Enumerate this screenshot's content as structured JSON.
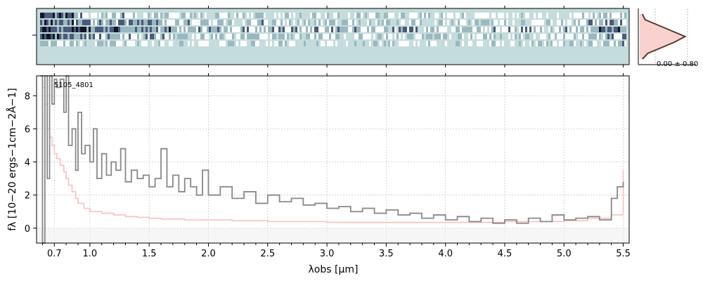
{
  "chart_data": [
    {
      "type": "heatmap",
      "panel": "2d-spectrum",
      "description_colormap": [
        "#c4dcdb",
        "#ffffff",
        "#9ab8c0",
        "#4a5a7a",
        "#141428"
      ],
      "trace_rows": [
        {
          "x": 0.55,
          "values": [
            0.9,
            0.7,
            0.8,
            0.9,
            0.5
          ]
        },
        {
          "x": 1.0,
          "values": [
            0.4,
            0.6,
            0.7,
            0.5,
            0.3
          ]
        },
        {
          "x": 2.0,
          "values": [
            0.3,
            0.4,
            0.5,
            0.35,
            0.25
          ]
        },
        {
          "x": 3.0,
          "values": [
            0.25,
            0.35,
            0.45,
            0.3,
            0.2
          ]
        },
        {
          "x": 4.0,
          "values": [
            0.2,
            0.3,
            0.4,
            0.3,
            0.2
          ]
        },
        {
          "x": 5.0,
          "values": [
            0.2,
            0.3,
            0.4,
            0.3,
            0.25
          ]
        },
        {
          "x": 5.5,
          "values": [
            0.5,
            0.6,
            0.8,
            0.5,
            0.4
          ]
        }
      ]
    },
    {
      "type": "line",
      "panel": "profile",
      "annotation": "0.00 ± 0.80",
      "profile_values": [
        0.05,
        0.1,
        0.35,
        0.6,
        0.85,
        0.65,
        0.4,
        0.15,
        0.05
      ],
      "xlim": [
        0,
        1
      ]
    },
    {
      "type": "line",
      "panel": "1d-spectrum",
      "label": "5105_4801",
      "xlabel": "λobs [μm]",
      "ylabel": "fλ [10−20 ergs−1cm−2Å−1]",
      "x_ticks": [
        0.7,
        1.0,
        1.5,
        2.0,
        2.5,
        3.0,
        3.5,
        4.0,
        4.5,
        5.0,
        5.5
      ],
      "x_tick_labels": [
        "0.7",
        "1.0",
        "1.5",
        "2.0",
        "2.5",
        "3.0",
        "3.5",
        "4.0",
        "4.5",
        "5.0",
        "5.5"
      ],
      "y_ticks": [
        0,
        2,
        4,
        6,
        8
      ],
      "ylim": [
        -0.9,
        9.2
      ],
      "xlim": [
        0.55,
        5.55
      ],
      "grid": true,
      "series": [
        {
          "color": "#888888",
          "x": [
            0.58,
            0.6,
            0.62,
            0.64,
            0.66,
            0.68,
            0.7,
            0.72,
            0.75,
            0.78,
            0.8,
            0.82,
            0.85,
            0.88,
            0.9,
            0.93,
            0.96,
            1.0,
            1.03,
            1.06,
            1.1,
            1.14,
            1.18,
            1.22,
            1.26,
            1.3,
            1.35,
            1.4,
            1.45,
            1.5,
            1.55,
            1.6,
            1.65,
            1.7,
            1.75,
            1.8,
            1.85,
            1.9,
            1.95,
            2.0,
            2.1,
            2.2,
            2.3,
            2.4,
            2.5,
            2.6,
            2.7,
            2.8,
            2.9,
            3.0,
            3.1,
            3.2,
            3.3,
            3.4,
            3.5,
            3.6,
            3.7,
            3.8,
            3.9,
            4.0,
            4.1,
            4.2,
            4.3,
            4.4,
            4.5,
            4.6,
            4.7,
            4.8,
            4.9,
            5.0,
            5.1,
            5.2,
            5.3,
            5.4,
            5.45,
            5.5
          ],
          "y": [
            9.2,
            -0.9,
            9.2,
            3.0,
            9.2,
            7.5,
            9.0,
            8.5,
            9.0,
            7.0,
            9.2,
            5.0,
            6.0,
            3.5,
            7.0,
            4.5,
            5.0,
            4.0,
            6.0,
            3.0,
            4.5,
            3.2,
            4.0,
            3.5,
            4.8,
            2.8,
            3.5,
            3.0,
            3.2,
            2.5,
            3.0,
            4.8,
            2.5,
            3.2,
            2.2,
            3.0,
            2.5,
            2.0,
            3.5,
            2.0,
            2.5,
            1.8,
            2.2,
            1.5,
            2.0,
            1.6,
            1.8,
            1.4,
            1.5,
            1.2,
            1.3,
            1.0,
            1.2,
            0.9,
            1.1,
            0.8,
            0.9,
            0.6,
            0.8,
            0.5,
            0.7,
            0.4,
            0.6,
            0.3,
            0.5,
            0.3,
            0.6,
            0.4,
            0.8,
            0.5,
            0.6,
            0.7,
            0.5,
            1.8,
            2.5,
            2.8
          ]
        },
        {
          "color": "#f7c0bf",
          "x": [
            0.58,
            0.6,
            0.62,
            0.64,
            0.66,
            0.68,
            0.7,
            0.72,
            0.75,
            0.78,
            0.8,
            0.82,
            0.85,
            0.88,
            0.9,
            0.95,
            1.0,
            1.1,
            1.2,
            1.3,
            1.4,
            1.5,
            1.6,
            1.8,
            2.0,
            2.2,
            2.5,
            2.8,
            3.0,
            3.5,
            4.0,
            4.5,
            5.0,
            5.2,
            5.4,
            5.5
          ],
          "y": [
            9.2,
            8.5,
            7.5,
            6.0,
            5.5,
            5.0,
            4.5,
            4.2,
            3.8,
            3.4,
            3.0,
            2.6,
            2.2,
            1.8,
            1.5,
            1.2,
            1.0,
            0.9,
            0.8,
            0.7,
            0.65,
            0.6,
            0.55,
            0.5,
            0.5,
            0.45,
            0.4,
            0.4,
            0.35,
            0.35,
            0.35,
            0.4,
            0.45,
            0.6,
            0.8,
            3.5
          ]
        }
      ]
    }
  ]
}
